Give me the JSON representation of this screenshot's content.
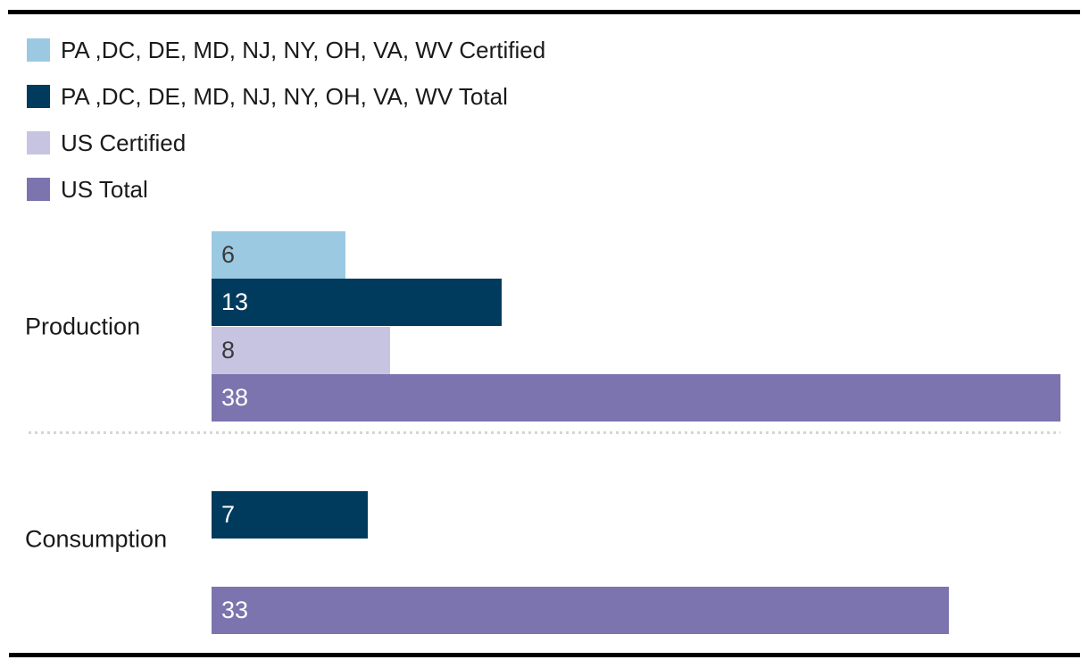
{
  "chart_data": {
    "type": "bar",
    "orientation": "horizontal",
    "title": "",
    "xlabel": "",
    "ylabel": "",
    "categories": [
      "Production",
      "Consumption"
    ],
    "series": [
      {
        "name": "PA ,DC, DE, MD, NJ, NY, OH, VA, WV Certified",
        "color": "#9cc9e2",
        "label_color": "#3a3a3a",
        "values": [
          6,
          null
        ]
      },
      {
        "name": "PA ,DC, DE, MD, NJ, NY, OH, VA, WV Total",
        "color": "#003a5d",
        "label_color": "#ffffff",
        "values": [
          13,
          7
        ]
      },
      {
        "name": "US Certified",
        "color": "#c7c4e2",
        "label_color": "#3a3a3a",
        "values": [
          8,
          null
        ]
      },
      {
        "name": "US Total",
        "color": "#7b74ae",
        "label_color": "#ffffff",
        "values": [
          38,
          33
        ]
      }
    ],
    "value_labels": [
      "6",
      "13",
      "8",
      "38",
      "7",
      "33"
    ],
    "xlim": [
      0,
      38
    ],
    "grid": false,
    "legend_position": "top-left",
    "separator": "dotted horizontal line between category groups"
  },
  "styles": {
    "background": "#ffffff",
    "text_color": "#1a1a1a",
    "rule_color": "#000000",
    "separator_color": "#d5d5d5"
  }
}
